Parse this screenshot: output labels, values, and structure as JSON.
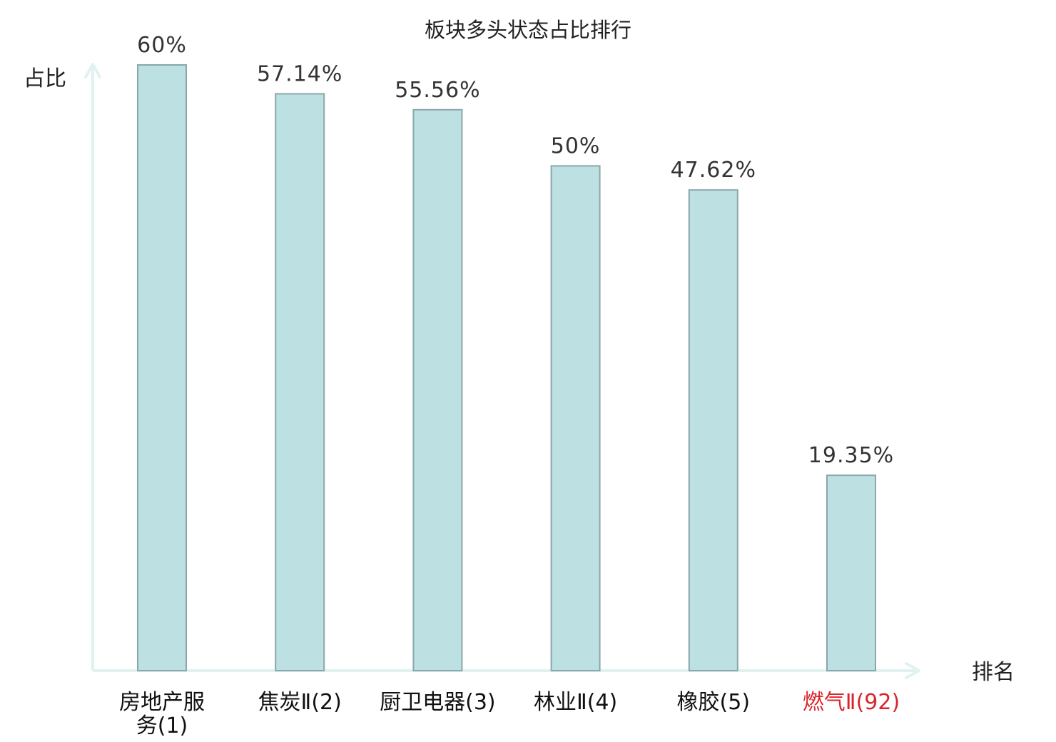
{
  "chart_data": {
    "type": "bar",
    "title": "板块多头状态占比排行",
    "xlabel": "排名",
    "ylabel": "占比",
    "ylim": [
      0,
      60
    ],
    "grid": false,
    "categories": [
      {
        "name": "房地产服务",
        "rank": "(1)",
        "lines": [
          "房地产服",
          "务(1)"
        ],
        "highlight": false
      },
      {
        "name": "焦炭Ⅱ",
        "rank": "(2)",
        "lines": [
          "焦炭Ⅱ(2)"
        ],
        "highlight": false
      },
      {
        "name": "厨卫电器",
        "rank": "(3)",
        "lines": [
          "厨卫电器(3)"
        ],
        "highlight": false
      },
      {
        "name": "林业Ⅱ",
        "rank": "(4)",
        "lines": [
          "林业Ⅱ(4)"
        ],
        "highlight": false
      },
      {
        "name": "橡胶",
        "rank": "(5)",
        "lines": [
          "橡胶(5)"
        ],
        "highlight": false
      },
      {
        "name": "燃气Ⅱ",
        "rank": "(92)",
        "lines": [
          "燃气Ⅱ(92)"
        ],
        "highlight": true
      }
    ],
    "values": [
      60,
      57.14,
      55.56,
      50,
      47.62,
      19.35
    ],
    "value_labels": [
      "60%",
      "57.14%",
      "55.56%",
      "50%",
      "47.62%",
      "19.35%"
    ],
    "colors": {
      "bar_fill": "#bde0e3",
      "bar_stroke": "#8aa7aa",
      "axis": "#e0f2f0",
      "highlight_text": "#d9262c"
    }
  }
}
